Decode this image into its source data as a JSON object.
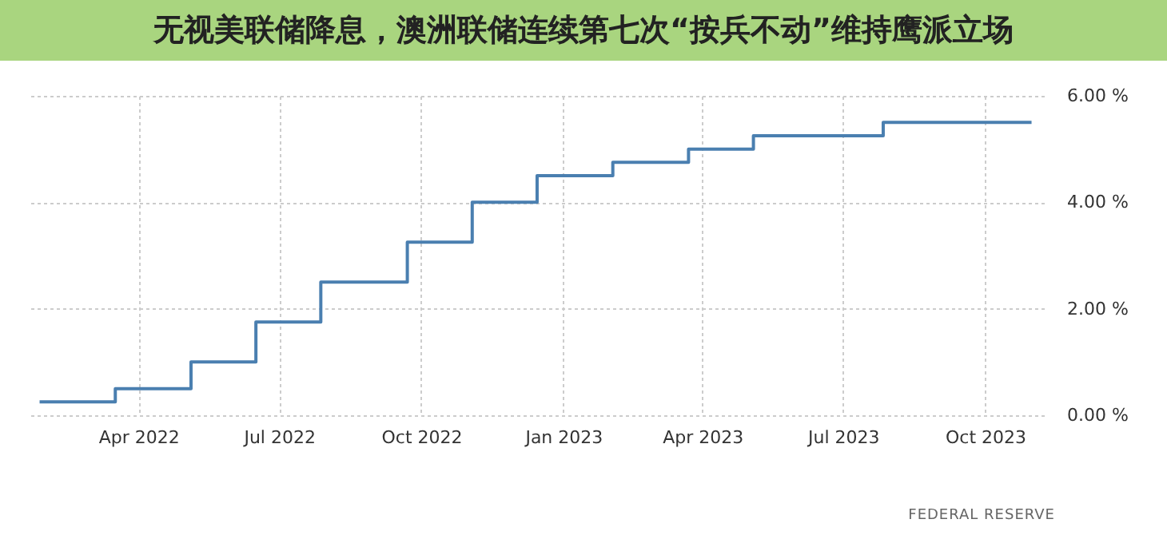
{
  "chart_data": {
    "type": "step",
    "title": "无视美联储降息，澳洲联储连续第七次“按兵不动”维持鹰派立场",
    "x": [
      "2022-01-27",
      "2022-03-17",
      "2022-05-05",
      "2022-06-16",
      "2022-07-28",
      "2022-09-22",
      "2022-11-03",
      "2022-12-15",
      "2023-02-02",
      "2023-03-23",
      "2023-05-04",
      "2023-07-27",
      "2023-10-31"
    ],
    "series": [
      {
        "color": "#4a7fb0",
        "values": [
          0.25,
          0.5,
          1.0,
          1.75,
          2.5,
          3.25,
          4.0,
          4.5,
          4.75,
          5.0,
          5.25,
          5.5,
          5.5
        ]
      }
    ],
    "xlim": [
      "2022-01-20",
      "2023-11-08"
    ],
    "xticks": [
      {
        "value": "2022-04-01",
        "label": "Apr 2022"
      },
      {
        "value": "2022-07-01",
        "label": "Jul 2022"
      },
      {
        "value": "2022-10-01",
        "label": "Oct 2022"
      },
      {
        "value": "2023-01-01",
        "label": "Jan 2023"
      },
      {
        "value": "2023-04-01",
        "label": "Apr 2023"
      },
      {
        "value": "2023-07-01",
        "label": "Jul 2023"
      },
      {
        "value": "2023-10-01",
        "label": "Oct 2023"
      }
    ],
    "ylim": [
      0,
      6
    ],
    "yticks": [
      {
        "value": 0,
        "label": "0.00 %"
      },
      {
        "value": 2,
        "label": "2.00 %"
      },
      {
        "value": 4,
        "label": "4.00 %"
      },
      {
        "value": 6,
        "label": "6.00 %"
      }
    ],
    "grid": true,
    "line_style": "solid",
    "marker": "none",
    "annotations": [
      "FEDERAL RESERVE"
    ]
  }
}
